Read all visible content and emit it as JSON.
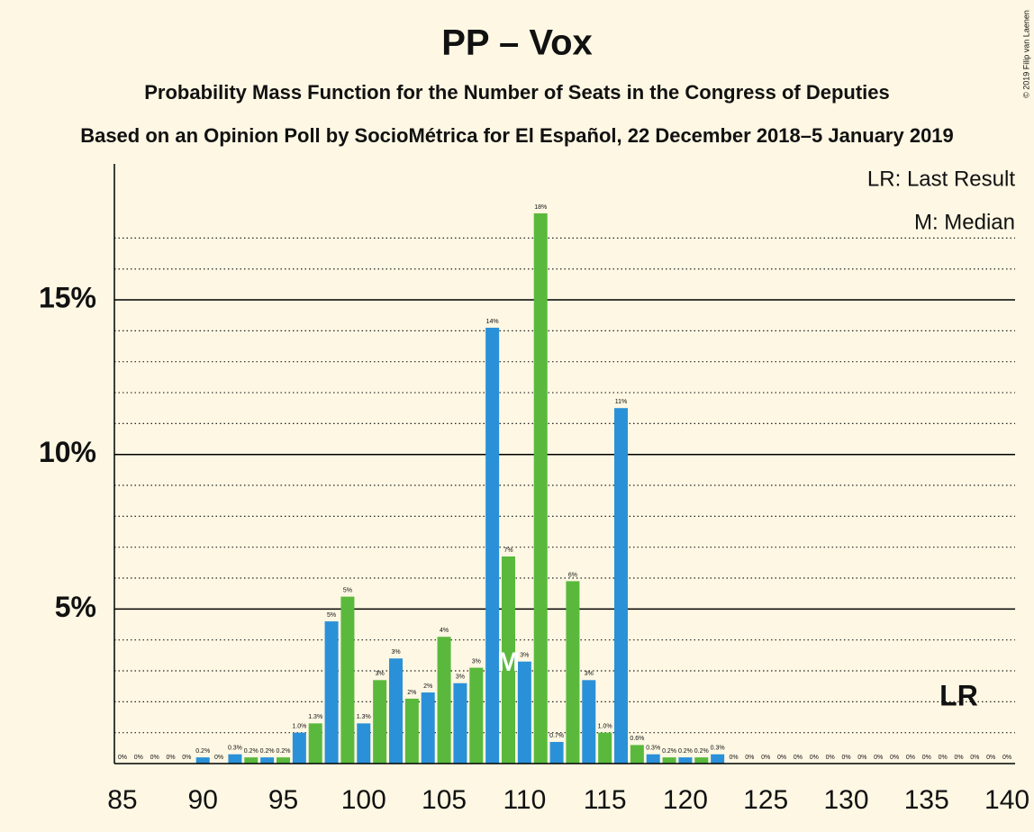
{
  "chart_data": {
    "type": "bar",
    "title": "PP – Vox",
    "subtitle": "Probability Mass Function for the Number of Seats in the Congress of Deputies",
    "subtitle2": "Based on an Opinion Poll by SocioMétrica for El Español, 22 December 2018–5 January 2019",
    "copyright": "© 2019 Filip van Laenen",
    "legend": [
      "LR: Last Result",
      "M: Median"
    ],
    "median": 109,
    "median_label": "M",
    "last_result": 137,
    "last_result_label": "LR",
    "x": [
      85,
      86,
      87,
      88,
      89,
      90,
      91,
      92,
      93,
      94,
      95,
      96,
      97,
      98,
      99,
      100,
      101,
      102,
      103,
      104,
      105,
      106,
      107,
      108,
      109,
      110,
      111,
      112,
      113,
      114,
      115,
      116,
      117,
      118,
      119,
      120,
      121,
      122,
      123,
      124,
      125,
      126,
      127,
      128,
      129,
      130,
      131,
      132,
      133,
      134,
      135,
      136,
      137,
      138,
      139,
      140
    ],
    "values": [
      0,
      0,
      0,
      0,
      0,
      0.2,
      0,
      0.3,
      0.2,
      0.2,
      0.2,
      1.0,
      1.3,
      4.6,
      5.4,
      1.3,
      2.7,
      3.4,
      2.1,
      2.3,
      4.1,
      2.6,
      3.1,
      14.1,
      6.7,
      3.3,
      17.8,
      0.7,
      5.9,
      2.7,
      1.0,
      11.5,
      0.6,
      0.3,
      0.2,
      0.2,
      0.2,
      0.3,
      0,
      0,
      0,
      0,
      0,
      0,
      0,
      0,
      0,
      0,
      0,
      0,
      0,
      0,
      0,
      0,
      0,
      0
    ],
    "value_labels": [
      "0%",
      "0%",
      "0%",
      "0%",
      "0%",
      "0.2%",
      "0%",
      "0.3%",
      "0.2%",
      "0.2%",
      "0.2%",
      "1.0%",
      "1.3%",
      "5%",
      "5%",
      "1.3%",
      "3%",
      "3%",
      "2%",
      "2%",
      "4%",
      "3%",
      "3%",
      "14%",
      "7%",
      "3%",
      "18%",
      "0.7%",
      "6%",
      "3%",
      "1.0%",
      "11%",
      "0.6%",
      "0.3%",
      "0.2%",
      "0.2%",
      "0.2%",
      "0.3%",
      "0%",
      "0%",
      "0%",
      "0%",
      "0%",
      "0%",
      "0%",
      "0%",
      "0%",
      "0%",
      "0%",
      "0%",
      "0%",
      "0%",
      "0%",
      "0%",
      "0%",
      "0%"
    ],
    "colors": [
      "#5ab93c",
      "#2a91d8",
      "#5ab93c",
      "#2a91d8",
      "#5ab93c",
      "#2a91d8",
      "#5ab93c",
      "#2a91d8",
      "#5ab93c",
      "#2a91d8",
      "#5ab93c",
      "#2a91d8",
      "#5ab93c",
      "#2a91d8",
      "#5ab93c",
      "#2a91d8",
      "#5ab93c",
      "#2a91d8",
      "#5ab93c",
      "#2a91d8",
      "#5ab93c",
      "#2a91d8",
      "#5ab93c",
      "#2a91d8",
      "#5ab93c",
      "#2a91d8",
      "#5ab93c",
      "#2a91d8",
      "#5ab93c",
      "#2a91d8",
      "#5ab93c",
      "#2a91d8",
      "#5ab93c",
      "#2a91d8",
      "#5ab93c",
      "#2a91d8",
      "#5ab93c",
      "#2a91d8",
      "#5ab93c",
      "#2a91d8",
      "#5ab93c",
      "#2a91d8",
      "#5ab93c",
      "#2a91d8",
      "#5ab93c",
      "#2a91d8",
      "#5ab93c",
      "#2a91d8",
      "#5ab93c",
      "#2a91d8",
      "#5ab93c",
      "#2a91d8",
      "#5ab93c",
      "#2a91d8",
      "#5ab93c",
      "#2a91d8"
    ],
    "xlim": [
      84.5,
      140.5
    ],
    "xticks": [
      85,
      90,
      95,
      100,
      105,
      110,
      115,
      120,
      125,
      130,
      135,
      140
    ],
    "ylim": [
      0,
      19.4
    ],
    "yticks": [
      {
        "value": 5,
        "label": "5%"
      },
      {
        "value": 10,
        "label": "10%"
      },
      {
        "value": 15,
        "label": "15%"
      }
    ],
    "minor_yticks": [
      1,
      2,
      3,
      4,
      6,
      7,
      8,
      9,
      11,
      12,
      13,
      14,
      16,
      17
    ],
    "grid": true
  }
}
